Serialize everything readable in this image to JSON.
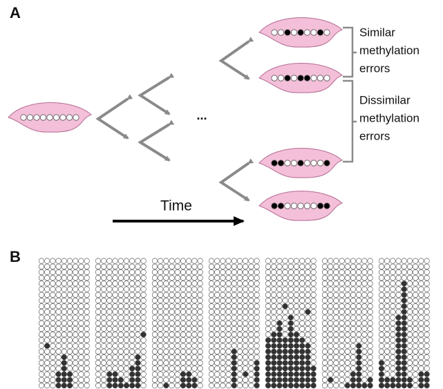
{
  "panels": {
    "a": {
      "label": "A",
      "ellipsis": "...",
      "time_label": "Time",
      "brackets": [
        {
          "lines": [
            "Similar",
            "methylation",
            "errors"
          ]
        },
        {
          "lines": [
            "Dissimilar",
            "methylation",
            "errors"
          ]
        }
      ]
    },
    "b": {
      "label": "B"
    }
  }
}
